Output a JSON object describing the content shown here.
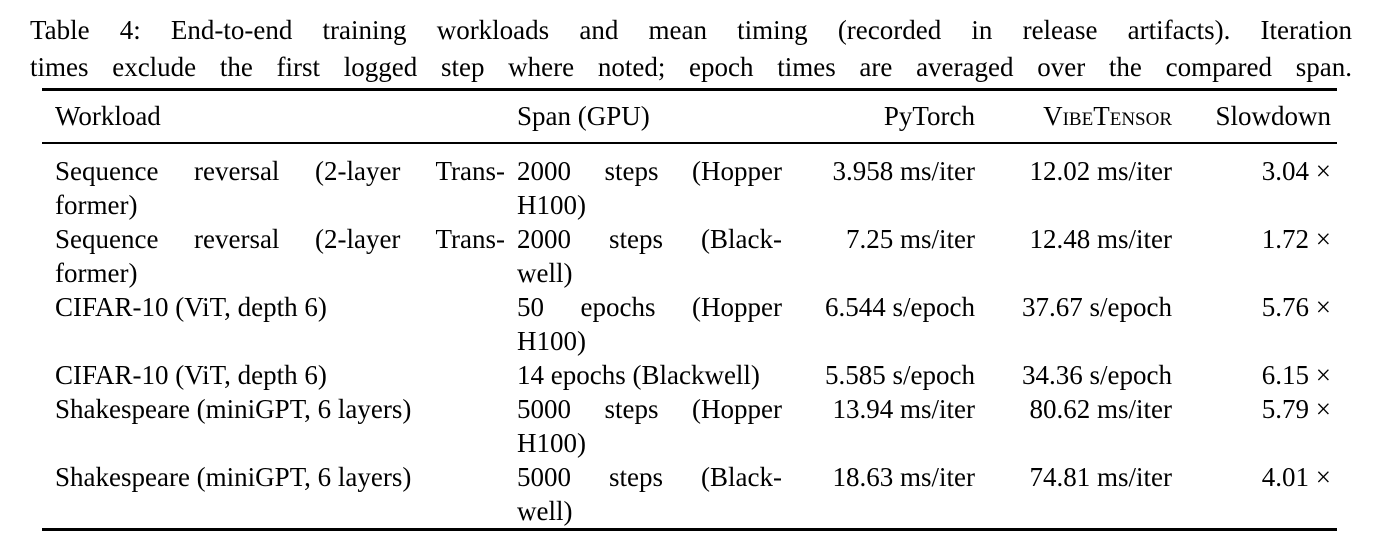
{
  "caption": {
    "lines": [
      "Table 4: End-to-end training workloads and mean timing (recorded in release artifacts). Iteration",
      "times exclude the first logged step where noted; epoch times are averaged over the compared span."
    ]
  },
  "table": {
    "headers": {
      "workload": "Workload",
      "span": "Span (GPU)",
      "pytorch": "PyTorch",
      "vibetensor": "VibeTensor",
      "slowdown": "Slowdown"
    },
    "rows": [
      {
        "workload": [
          "Sequence reversal (2-layer Trans-",
          "former)"
        ],
        "span": [
          "2000 steps (Hopper",
          "H100)"
        ],
        "pytorch": "3.958 ms/iter",
        "vibetensor": "12.02 ms/iter",
        "slowdown": "3.04 ×"
      },
      {
        "workload": [
          "Sequence reversal (2-layer Trans-",
          "former)"
        ],
        "span": [
          "2000 steps (Black-",
          "well)"
        ],
        "pytorch": "7.25 ms/iter",
        "vibetensor": "12.48 ms/iter",
        "slowdown": "1.72 ×"
      },
      {
        "workload": [
          "CIFAR-10 (ViT, depth 6)"
        ],
        "span": [
          "50 epochs (Hopper",
          "H100)"
        ],
        "pytorch": "6.544 s/epoch",
        "vibetensor": "37.67 s/epoch",
        "slowdown": "5.76 ×"
      },
      {
        "workload": [
          "CIFAR-10 (ViT, depth 6)"
        ],
        "span": [
          "14 epochs (Blackwell)"
        ],
        "pytorch": "5.585 s/epoch",
        "vibetensor": "34.36 s/epoch",
        "slowdown": "6.15 ×"
      },
      {
        "workload": [
          "Shakespeare (miniGPT, 6 layers)"
        ],
        "span": [
          "5000 steps (Hopper",
          "H100)"
        ],
        "pytorch": "13.94 ms/iter",
        "vibetensor": "80.62 ms/iter",
        "slowdown": "5.79 ×"
      },
      {
        "workload": [
          "Shakespeare (miniGPT, 6 layers)"
        ],
        "span": [
          "5000 steps (Black-",
          "well)"
        ],
        "pytorch": "18.63 ms/iter",
        "vibetensor": "74.81 ms/iter",
        "slowdown": "4.01 ×"
      }
    ]
  }
}
